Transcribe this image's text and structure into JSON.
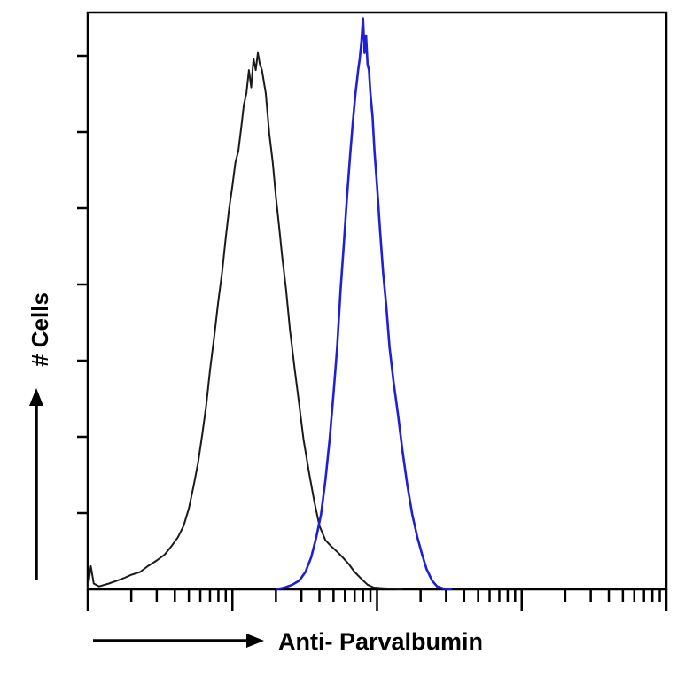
{
  "chart_data": {
    "type": "area",
    "title": "",
    "xlabel": "Anti- Parvalbumin",
    "ylabel": "# Cells",
    "xscale": "log",
    "xlim": [
      1,
      10000
    ],
    "ylim": [
      0,
      100
    ],
    "grid": false,
    "legend": "none",
    "x_tick_labels": [],
    "y_tick_labels": [],
    "series": [
      {
        "color": "#1a1a1a",
        "points": [
          [
            1.0,
            0
          ],
          [
            1.05,
            4
          ],
          [
            1.1,
            1
          ],
          [
            1.2,
            0.5
          ],
          [
            1.4,
            1
          ],
          [
            1.6,
            1.5
          ],
          [
            1.8,
            2
          ],
          [
            2.0,
            2.5
          ],
          [
            2.3,
            3
          ],
          [
            2.6,
            4
          ],
          [
            3.0,
            5
          ],
          [
            3.4,
            6
          ],
          [
            3.8,
            7.5
          ],
          [
            4.2,
            9
          ],
          [
            4.6,
            11
          ],
          [
            5.0,
            14
          ],
          [
            5.4,
            18
          ],
          [
            5.8,
            22
          ],
          [
            6.2,
            27
          ],
          [
            6.6,
            32
          ],
          [
            7.0,
            38
          ],
          [
            7.5,
            44
          ],
          [
            8.0,
            50
          ],
          [
            8.5,
            55
          ],
          [
            9.0,
            61
          ],
          [
            9.5,
            66
          ],
          [
            10.0,
            70
          ],
          [
            10.5,
            74
          ],
          [
            11.0,
            76
          ],
          [
            11.5,
            80
          ],
          [
            12.0,
            84
          ],
          [
            12.5,
            86
          ],
          [
            13.0,
            90
          ],
          [
            13.5,
            87
          ],
          [
            14.0,
            92
          ],
          [
            14.5,
            90
          ],
          [
            15.0,
            93
          ],
          [
            15.5,
            91
          ],
          [
            16.0,
            90
          ],
          [
            17.0,
            86
          ],
          [
            18.0,
            79
          ],
          [
            19.0,
            74
          ],
          [
            20.0,
            68
          ],
          [
            21.0,
            63
          ],
          [
            22.0,
            58
          ],
          [
            23.5,
            52
          ],
          [
            25.0,
            45
          ],
          [
            27.0,
            38
          ],
          [
            29.0,
            32
          ],
          [
            31.0,
            26
          ],
          [
            34.0,
            20
          ],
          [
            37.0,
            15
          ],
          [
            40.0,
            11
          ],
          [
            44.0,
            8.5
          ],
          [
            48.0,
            7.5
          ],
          [
            53.0,
            6.5
          ],
          [
            58.0,
            5.5
          ],
          [
            64.0,
            4.3
          ],
          [
            70.0,
            3.0
          ],
          [
            78.0,
            1.8
          ],
          [
            86.0,
            0.8
          ],
          [
            95.0,
            0.3
          ],
          [
            110.0,
            0.2
          ],
          [
            130.0,
            0.1
          ],
          [
            150.0,
            0
          ]
        ]
      },
      {
        "color": "#1f1fd6",
        "points": [
          [
            20.0,
            0
          ],
          [
            23.0,
            0.3
          ],
          [
            26.0,
            0.8
          ],
          [
            29.0,
            1.5
          ],
          [
            32.0,
            3
          ],
          [
            35.0,
            5.5
          ],
          [
            38.0,
            9
          ],
          [
            41.0,
            13
          ],
          [
            44.0,
            19
          ],
          [
            47.0,
            26
          ],
          [
            50.0,
            34
          ],
          [
            53.0,
            42
          ],
          [
            56.0,
            52
          ],
          [
            59.0,
            60
          ],
          [
            62.0,
            68
          ],
          [
            65.0,
            75
          ],
          [
            68.0,
            81
          ],
          [
            71.0,
            86
          ],
          [
            74.0,
            90
          ],
          [
            76.0,
            92
          ],
          [
            78.0,
            95
          ],
          [
            80.0,
            99
          ],
          [
            82.0,
            93
          ],
          [
            84.0,
            96
          ],
          [
            86.0,
            91
          ],
          [
            88.0,
            90
          ],
          [
            90.0,
            86
          ],
          [
            93.0,
            82
          ],
          [
            96.0,
            76
          ],
          [
            100.0,
            70
          ],
          [
            105.0,
            62
          ],
          [
            110.0,
            55
          ],
          [
            116.0,
            49
          ],
          [
            122.0,
            42
          ],
          [
            130.0,
            36
          ],
          [
            140.0,
            30
          ],
          [
            150.0,
            24
          ],
          [
            162.0,
            18
          ],
          [
            175.0,
            13
          ],
          [
            190.0,
            9
          ],
          [
            205.0,
            6
          ],
          [
            220.0,
            3.5
          ],
          [
            240.0,
            1.5
          ],
          [
            260.0,
            0.5
          ],
          [
            290.0,
            0.1
          ],
          [
            330.0,
            0
          ]
        ]
      }
    ]
  }
}
